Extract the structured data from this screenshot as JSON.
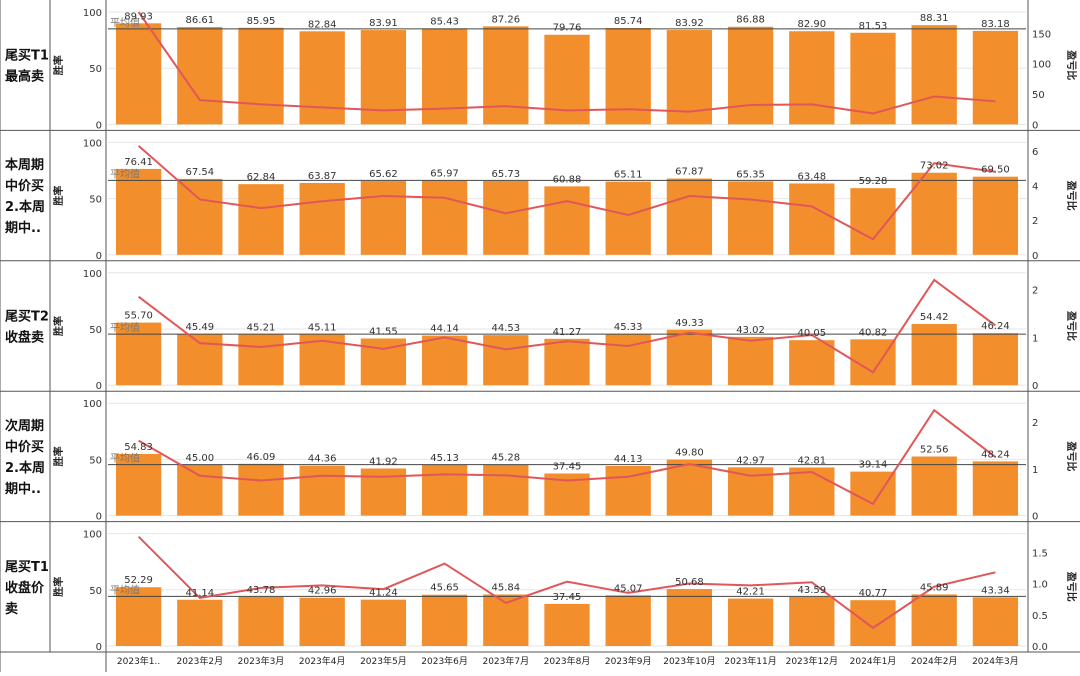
{
  "chart_data": {
    "type": "bar",
    "categories": [
      "2023年1..",
      "2023年2月",
      "2023年3月",
      "2023年4月",
      "2023年5月",
      "2023年6月",
      "2023年7月",
      "2023年8月",
      "2023年9月",
      "2023年10月",
      "2023年11月",
      "2023年12月",
      "2024年1月",
      "2024年2月",
      "2024年3月"
    ],
    "left_axis_label": "胜率",
    "right_axis_label": "盈亏比",
    "avg_label": "平均值",
    "colors": {
      "bar": "#f28e2b",
      "line": "#e15759",
      "avg_line": "#444444",
      "grid": "#e6e6e6",
      "border": "#555555"
    },
    "panels": [
      {
        "label_lines": [
          "尾买T1",
          "最高卖"
        ],
        "bar_values": [
          89.93,
          86.61,
          85.95,
          82.84,
          83.91,
          85.43,
          87.26,
          79.76,
          85.74,
          83.92,
          86.88,
          82.9,
          81.53,
          88.31,
          83.18
        ],
        "line_values": [
          185,
          40,
          33,
          28,
          23,
          26,
          30,
          23,
          25,
          21,
          32,
          33,
          18,
          46,
          38
        ],
        "average": 84.94,
        "ylim": [
          0,
          100
        ],
        "yticks": [
          0,
          50,
          100
        ],
        "y2lim": [
          0,
          185
        ],
        "y2ticks": [
          0,
          50,
          100,
          150
        ],
        "y2tick_labels": [
          "0",
          "50",
          "100",
          "150"
        ]
      },
      {
        "label_lines": [
          "本周期",
          "中价买",
          "2.本周",
          "期中.."
        ],
        "bar_values": [
          76.41,
          67.54,
          62.84,
          63.87,
          65.62,
          65.97,
          65.73,
          60.88,
          65.11,
          67.87,
          65.35,
          63.48,
          59.28,
          73.02,
          69.5
        ],
        "line_values": [
          6.3,
          3.2,
          2.7,
          3.1,
          3.4,
          3.3,
          2.4,
          3.1,
          2.3,
          3.4,
          3.2,
          2.8,
          0.9,
          5.3,
          4.8
        ],
        "average": 66.16,
        "ylim": [
          0,
          100
        ],
        "yticks": [
          0,
          50,
          100
        ],
        "y2lim": [
          0,
          6.5
        ],
        "y2ticks": [
          0,
          2,
          4,
          6
        ],
        "y2tick_labels": [
          "0",
          "2",
          "4",
          "6"
        ]
      },
      {
        "label_lines": [
          "尾买T2",
          "收盘卖"
        ],
        "bar_values": [
          55.7,
          45.49,
          45.21,
          45.11,
          41.55,
          44.14,
          44.53,
          41.27,
          45.33,
          49.33,
          43.02,
          40.05,
          40.82,
          54.42,
          46.24
        ],
        "line_values": [
          1.85,
          0.88,
          0.8,
          0.93,
          0.76,
          1.0,
          0.75,
          0.92,
          0.82,
          1.1,
          0.93,
          1.05,
          0.27,
          2.2,
          1.25
        ],
        "average": 45.48,
        "ylim": [
          0,
          100
        ],
        "yticks": [
          0,
          50,
          100
        ],
        "y2lim": [
          0,
          2.35
        ],
        "y2ticks": [
          0,
          1,
          2
        ],
        "y2tick_labels": [
          "0",
          "1",
          "2"
        ]
      },
      {
        "label_lines": [
          "次周期",
          "中价买",
          "2.本周",
          "期中.."
        ],
        "bar_values": [
          54.83,
          45.0,
          46.09,
          44.36,
          41.92,
          45.13,
          45.28,
          37.45,
          44.13,
          49.8,
          42.97,
          42.81,
          39.14,
          52.56,
          48.24
        ],
        "line_values": [
          1.6,
          0.85,
          0.75,
          0.85,
          0.83,
          0.88,
          0.86,
          0.75,
          0.83,
          1.1,
          0.85,
          0.93,
          0.25,
          2.25,
          1.25
        ],
        "average": 45.31,
        "ylim": [
          0,
          100
        ],
        "yticks": [
          0,
          50,
          100
        ],
        "y2lim": [
          0,
          2.4
        ],
        "y2ticks": [
          0,
          1,
          2
        ],
        "y2tick_labels": [
          "0",
          "1",
          "2"
        ]
      },
      {
        "label_lines": [
          "尾买T1",
          "收盘价",
          "卖"
        ],
        "bar_values": [
          52.29,
          41.14,
          43.78,
          42.96,
          41.24,
          45.65,
          45.84,
          37.45,
          45.07,
          50.68,
          42.21,
          43.59,
          40.77,
          45.89,
          43.34
        ],
        "line_values": [
          1.75,
          0.77,
          0.93,
          0.97,
          0.91,
          1.32,
          0.69,
          1.03,
          0.85,
          1.0,
          0.97,
          1.02,
          0.29,
          0.95,
          1.18
        ],
        "average": 44.14,
        "ylim": [
          0,
          100
        ],
        "yticks": [
          0,
          50,
          100
        ],
        "y2lim": [
          0,
          1.8
        ],
        "y2ticks": [
          0.0,
          0.5,
          1.0,
          1.5
        ],
        "y2tick_labels": [
          "0.0",
          "0.5",
          "1.0",
          "1.5"
        ]
      }
    ]
  }
}
